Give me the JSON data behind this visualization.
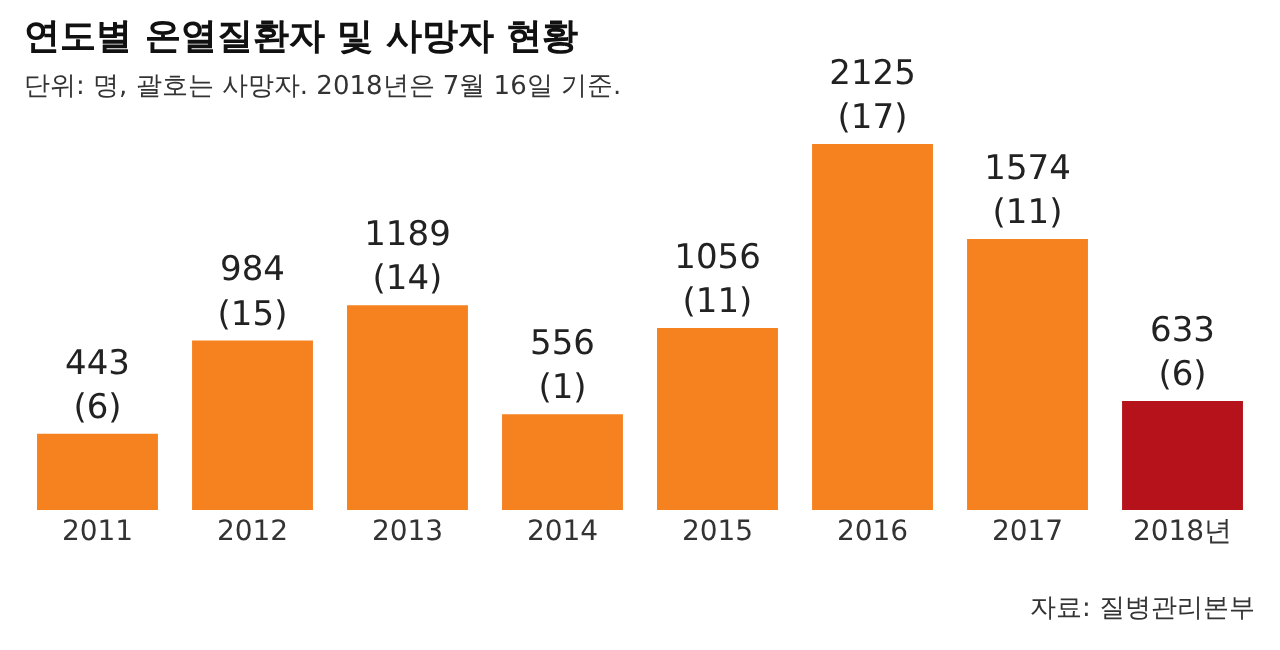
{
  "chart_data": {
    "type": "bar",
    "title": "연도별 온열질환자 및 사망자 현황",
    "subtitle": "단위: 명, 괄호는 사망자. 2018년은 7월 16일 기준.",
    "categories": [
      "2011",
      "2012",
      "2013",
      "2014",
      "2015",
      "2016",
      "2017",
      "2018년"
    ],
    "values": [
      443,
      984,
      1189,
      556,
      1056,
      2125,
      1574,
      633
    ],
    "colors": [
      "#f5821f",
      "#f5821f",
      "#f5821f",
      "#f5821f",
      "#f5821f",
      "#f5821f",
      "#f5821f",
      "#b5121b"
    ],
    "value_labels": [
      "443\n(6)",
      "984\n(15)",
      "1189\n(14)",
      "556\n(1)",
      "1056\n(11)",
      "2125\n(17)",
      "1574\n(11)",
      "633\n(6)"
    ],
    "legend": false,
    "annotations": [
      "자료: 질병관리본부"
    ]
  }
}
